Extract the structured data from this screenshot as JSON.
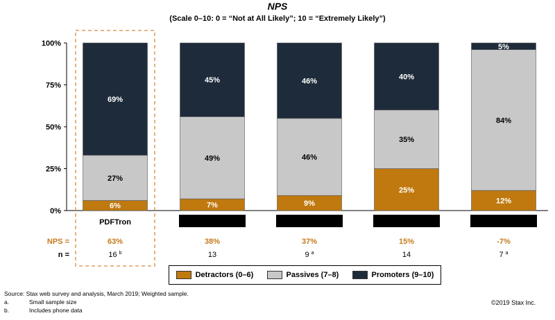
{
  "colors": {
    "detractors": "#c0790f",
    "passives": "#c8c8c8",
    "promoters": "#1e2b3a",
    "nps_text": "#c47a1a",
    "highlight_border": "#d9893a",
    "redaction": "#000000"
  },
  "chart_data": {
    "type": "bar",
    "stacked": true,
    "title": "NPS",
    "subtitle": "(Scale 0–10: 0 = “Not at All Likely”; 10 = “Extremely Likely”)",
    "ylim": [
      0,
      100
    ],
    "y_ticks": [
      "0%",
      "25%",
      "50%",
      "75%",
      "100%"
    ],
    "y_tick_values": [
      0,
      25,
      50,
      75,
      100
    ],
    "categories": [
      "PDFTron",
      "",
      "",
      "",
      ""
    ],
    "category_redacted": [
      false,
      true,
      true,
      true,
      true
    ],
    "highlighted_category": 0,
    "series": [
      {
        "name": "Detractors (0–6)",
        "key": "detractors",
        "values": [
          6,
          7,
          9,
          25,
          12
        ],
        "labels": [
          "6%",
          "7%",
          "9%",
          "25%",
          "12%"
        ],
        "label_color": "#ffffff"
      },
      {
        "name": "Passives (7–8)",
        "key": "passives",
        "values": [
          27,
          49,
          46,
          35,
          84
        ],
        "labels": [
          "27%",
          "49%",
          "46%",
          "35%",
          "84%"
        ],
        "label_color": "#000000"
      },
      {
        "name": "Promoters (9–10)",
        "key": "promoters",
        "values": [
          69,
          45,
          46,
          40,
          5
        ],
        "labels": [
          "69%",
          "45%",
          "46%",
          "40%",
          "5%"
        ],
        "label_color": "#ffffff"
      }
    ],
    "nps_label": "NPS =",
    "nps_values": [
      "63%",
      "38%",
      "37%",
      "15%",
      "-7%"
    ],
    "n_label": "n =",
    "n_values": [
      "16",
      "13",
      "9",
      "14",
      "7"
    ],
    "n_superscripts": [
      "b",
      "",
      "a",
      "",
      "a"
    ],
    "legend_position": "bottom-center"
  },
  "footer": {
    "source": "Source:  Stax web survey and analysis, March 2019; Weighted sample.",
    "note_a_marker": "a.",
    "note_a": "Small sample size",
    "note_b_marker": "b.",
    "note_b": "Includes phone data",
    "copyright": "©2019 Stax Inc."
  }
}
